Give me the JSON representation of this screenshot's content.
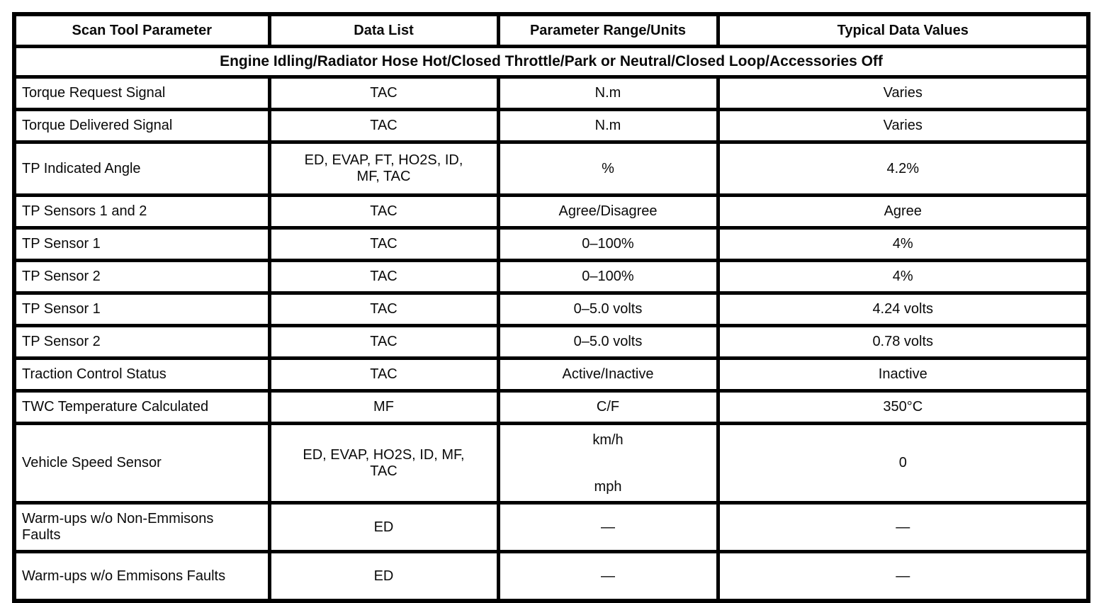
{
  "table": {
    "columns": [
      "Scan Tool Parameter",
      "Data List",
      "Parameter Range/Units",
      "Typical Data Values"
    ],
    "condition": "Engine Idling/Radiator Hose Hot/Closed Throttle/Park or Neutral/Closed Loop/Accessories Off",
    "rows": [
      {
        "parameter": "Torque Request Signal",
        "data_list": "TAC",
        "range_units": "N.m",
        "typical": "Varies"
      },
      {
        "parameter": "Torque Delivered Signal",
        "data_list": "TAC",
        "range_units": "N.m",
        "typical": "Varies"
      },
      {
        "parameter": "TP Indicated Angle",
        "data_list": "ED, EVAP, FT, HO2S, ID, MF, TAC",
        "range_units": "%",
        "typical": "4.2%"
      },
      {
        "parameter": "TP Sensors 1 and 2",
        "data_list": "TAC",
        "range_units": "Agree/Disagree",
        "typical": "Agree"
      },
      {
        "parameter": "TP Sensor 1",
        "data_list": "TAC",
        "range_units": "0–100%",
        "typical": "4%"
      },
      {
        "parameter": "TP Sensor 2",
        "data_list": "TAC",
        "range_units": "0–100%",
        "typical": "4%"
      },
      {
        "parameter": "TP Sensor 1",
        "data_list": "TAC",
        "range_units": "0–5.0 volts",
        "typical": "4.24 volts"
      },
      {
        "parameter": "TP Sensor 2",
        "data_list": "TAC",
        "range_units": "0–5.0 volts",
        "typical": "0.78 volts"
      },
      {
        "parameter": "Traction Control Status",
        "data_list": "TAC",
        "range_units": "Active/Inactive",
        "typical": "Inactive"
      },
      {
        "parameter": "TWC Temperature Calculated",
        "data_list": "MF",
        "range_units": "C/F",
        "typical": "350°C"
      },
      {
        "parameter": "Vehicle Speed Sensor",
        "data_list": "ED, EVAP, HO2S, ID, MF, TAC",
        "range_units_top": "km/h",
        "range_units_bottom": "mph",
        "typical": "0"
      },
      {
        "parameter": "Warm-ups w/o Non-Emmisons Faults",
        "data_list": "ED",
        "range_units": "—",
        "typical": "—"
      },
      {
        "parameter": "Warm-ups w/o Emmisons Faults",
        "data_list": "ED",
        "range_units": "—",
        "typical": "—"
      }
    ]
  }
}
